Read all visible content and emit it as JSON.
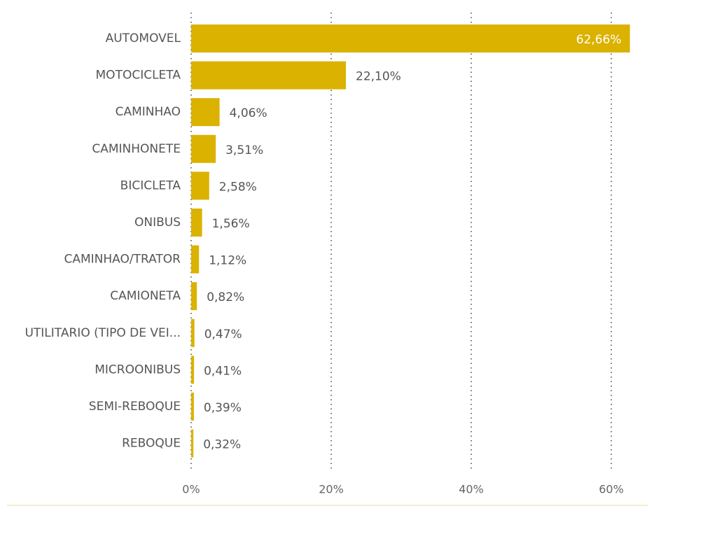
{
  "chart_data": {
    "type": "bar",
    "orientation": "horizontal",
    "categories": [
      "AUTOMOVEL",
      "MOTOCICLETA",
      "CAMINHAO",
      "CAMINHONETE",
      "BICICLETA",
      "ONIBUS",
      "CAMINHAO/TRATOR",
      "CAMIONETA",
      "UTILITARIO (TIPO DE VEI...",
      "MICROONIBUS",
      "SEMI-REBOQUE",
      "REBOQUE"
    ],
    "values": [
      62.66,
      22.1,
      4.06,
      3.51,
      2.58,
      1.56,
      1.12,
      0.82,
      0.47,
      0.41,
      0.39,
      0.32
    ],
    "value_labels": [
      "62,66%",
      "22,10%",
      "4,06%",
      "3,51%",
      "2,58%",
      "1,56%",
      "1,12%",
      "0,82%",
      "0,47%",
      "0,41%",
      "0,39%",
      "0,32%"
    ],
    "xticks": [
      0,
      20,
      40,
      60
    ],
    "xtick_labels": [
      "0%",
      "20%",
      "40%",
      "60%"
    ],
    "xlim": [
      0,
      63
    ],
    "grid": true,
    "bar_color": "#dbb200",
    "title": "",
    "xlabel": "",
    "ylabel": ""
  }
}
